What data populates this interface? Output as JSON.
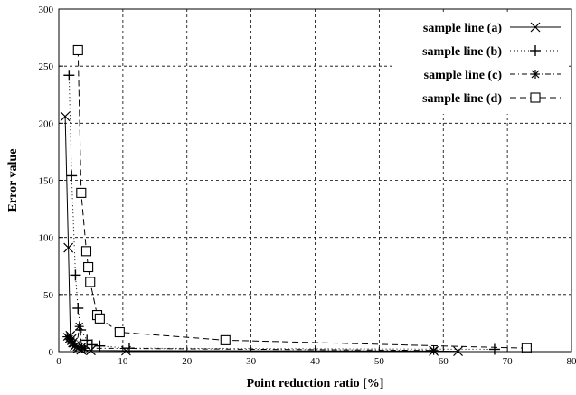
{
  "chart_data": {
    "type": "line",
    "title": "",
    "xlabel": "Point reduction ratio [%]",
    "ylabel": "Error value",
    "xlim": [
      0,
      80
    ],
    "ylim": [
      0,
      300
    ],
    "xticks": [
      0,
      10,
      20,
      30,
      40,
      50,
      60,
      70,
      80
    ],
    "yticks": [
      0,
      50,
      100,
      150,
      200,
      250,
      300
    ],
    "grid": true,
    "grid_style": "dashed",
    "legend_position": "top-right",
    "series": [
      {
        "name": "sample line (a)",
        "marker": "x",
        "line_style": "solid",
        "points": [
          [
            1.0,
            206
          ],
          [
            1.5,
            91
          ],
          [
            1.8,
            14
          ],
          [
            2.0,
            11
          ],
          [
            2.2,
            8
          ],
          [
            2.5,
            5
          ],
          [
            3.0,
            3
          ],
          [
            3.5,
            1.5
          ],
          [
            5.0,
            1
          ],
          [
            10.5,
            0.8
          ],
          [
            58.5,
            0.5
          ],
          [
            62.3,
            0.3
          ]
        ]
      },
      {
        "name": "sample line (b)",
        "marker": "+",
        "line_style": "dotted",
        "points": [
          [
            1.6,
            242
          ],
          [
            2.0,
            154
          ],
          [
            2.6,
            67
          ],
          [
            3.0,
            38
          ],
          [
            3.4,
            19
          ],
          [
            4.4,
            10
          ],
          [
            5.2,
            6
          ],
          [
            6.4,
            5
          ],
          [
            11.0,
            3
          ],
          [
            68.0,
            2
          ]
        ]
      },
      {
        "name": "sample line (c)",
        "marker": "*",
        "line_style": "dash-dot",
        "points": [
          [
            1.3,
            13
          ],
          [
            1.6,
            11
          ],
          [
            1.9,
            9
          ],
          [
            2.2,
            7
          ],
          [
            2.5,
            5
          ],
          [
            2.8,
            4
          ],
          [
            3.2,
            22
          ],
          [
            3.6,
            4
          ],
          [
            4.0,
            3
          ],
          [
            58.5,
            1
          ]
        ]
      },
      {
        "name": "sample line (d)",
        "marker": "square",
        "line_style": "dashed",
        "points": [
          [
            3.0,
            264
          ],
          [
            3.5,
            139
          ],
          [
            4.3,
            88
          ],
          [
            4.6,
            74
          ],
          [
            4.9,
            61
          ],
          [
            6.0,
            32
          ],
          [
            6.4,
            29
          ],
          [
            9.5,
            17
          ],
          [
            26.0,
            10
          ],
          [
            73.0,
            3
          ]
        ]
      }
    ]
  },
  "colors": {
    "ink": "#000000",
    "grid": "#000000",
    "background": "#ffffff"
  }
}
